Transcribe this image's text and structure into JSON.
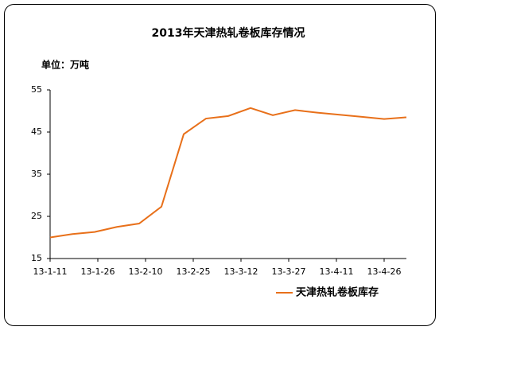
{
  "chart_data": {
    "type": "line",
    "title": "2013年天津热轧卷板库存情况",
    "unit_label": "单位：万吨",
    "x": [
      "13-1-11",
      "13-1-18",
      "13-1-25",
      "13-2-1",
      "13-2-8",
      "13-2-15",
      "13-2-22",
      "13-3-1",
      "13-3-8",
      "13-3-15",
      "13-3-22",
      "13-3-29",
      "13-4-5",
      "13-4-12",
      "13-4-19",
      "13-4-26",
      "13-5-3"
    ],
    "series": [
      {
        "name": "天津热轧卷板库存",
        "color": "#e8701a",
        "values": [
          20,
          20.8,
          21.3,
          22.5,
          23.3,
          27.3,
          44.5,
          48.2,
          48.8,
          50.7,
          49,
          50.2,
          49.6,
          49.1,
          48.6,
          48.1,
          48.5
        ]
      }
    ],
    "xlim": [
      "13-1-11",
      "13-5-3"
    ],
    "xticks": [
      "13-1-11",
      "13-1-26",
      "13-2-10",
      "13-2-25",
      "13-3-12",
      "13-3-27",
      "13-4-11",
      "13-4-26"
    ],
    "ylim": [
      15,
      55
    ],
    "yticks": [
      15,
      25,
      35,
      45,
      55
    ],
    "grid": false
  }
}
